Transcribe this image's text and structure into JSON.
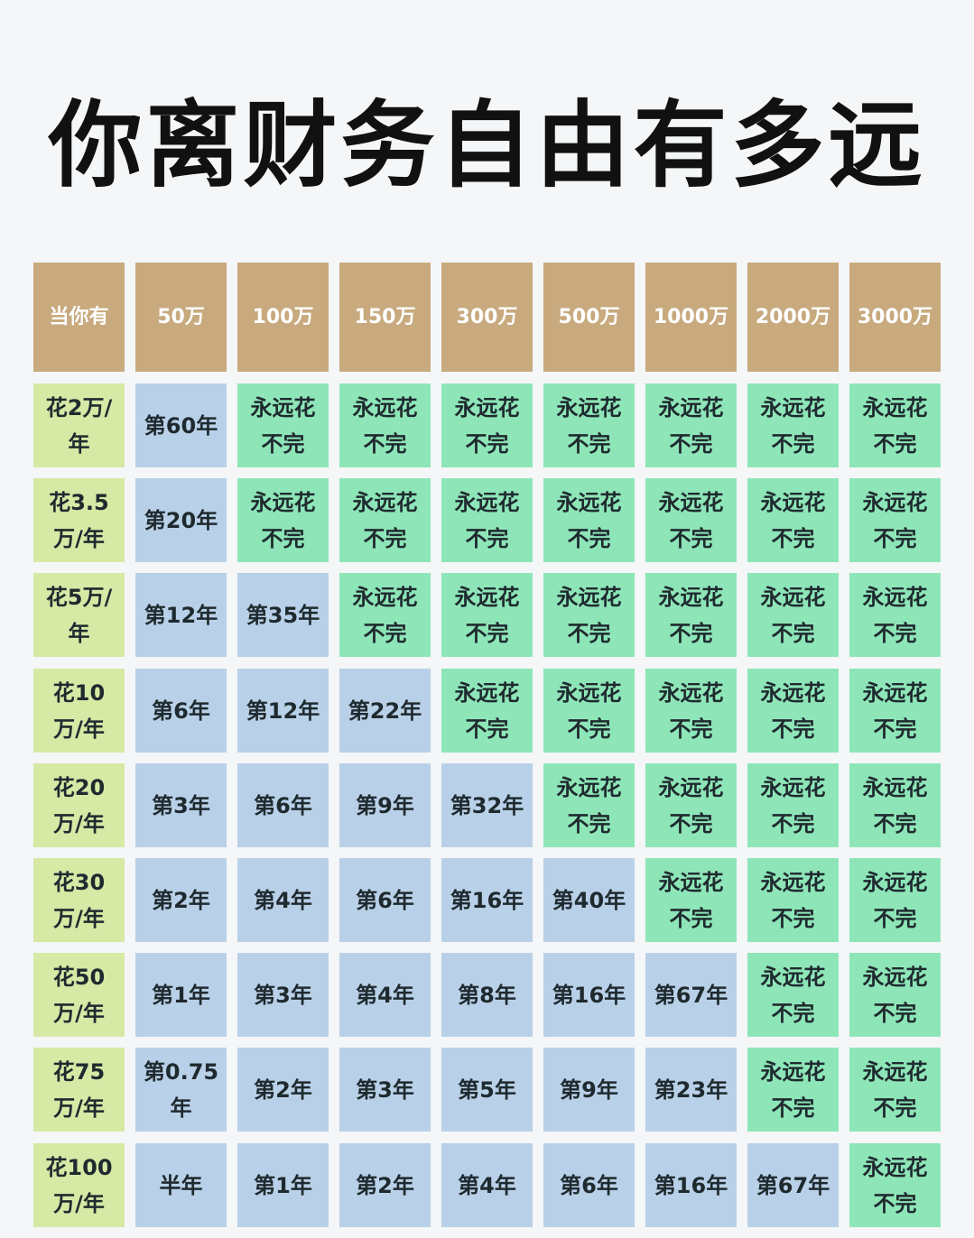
{
  "title": "你离财务自由有多远",
  "headers": [
    "当你有",
    "50万",
    "100万",
    "150万",
    "300万",
    "500万",
    "1000万",
    "2000万",
    "3000万"
  ],
  "rows": [
    {
      "label": "花2万/\n年",
      "cells": [
        "第60年",
        "永远花\n不完",
        "永远花\n不完",
        "永远花\n不完",
        "永远花\n不完",
        "永远花\n不完",
        "永远花\n不完",
        "永远花\n不完"
      ]
    },
    {
      "label": "花3.5\n万/年",
      "cells": [
        "第20年",
        "永远花\n不完",
        "永远花\n不完",
        "永远花\n不完",
        "永远花\n不完",
        "永远花\n不完",
        "永远花\n不完",
        "永远花\n不完"
      ]
    },
    {
      "label": "花5万/\n年",
      "cells": [
        "第12年",
        "第35年",
        "永远花\n不完",
        "永远花\n不完",
        "永远花\n不完",
        "永远花\n不完",
        "永远花\n不完",
        "永远花\n不完"
      ]
    },
    {
      "label": "花10\n万/年",
      "cells": [
        "第6年",
        "第12年",
        "第22年",
        "永远花\n不完",
        "永远花\n不完",
        "永远花\n不完",
        "永远花\n不完",
        "永远花\n不完"
      ]
    },
    {
      "label": "花20\n万/年",
      "cells": [
        "第3年",
        "第6年",
        "第9年",
        "第32年",
        "永远花\n不完",
        "永远花\n不完",
        "永远花\n不完",
        "永远花\n不完"
      ]
    },
    {
      "label": "花30\n万/年",
      "cells": [
        "第2年",
        "第4年",
        "第6年",
        "第16年",
        "第40年",
        "永远花\n不完",
        "永远花\n不完",
        "永远花\n不完"
      ]
    },
    {
      "label": "花50\n万/年",
      "cells": [
        "第1年",
        "第3年",
        "第4年",
        "第8年",
        "第16年",
        "第67年",
        "永远花\n不完",
        "永远花\n不完"
      ]
    },
    {
      "label": "花75\n万/年",
      "cells": [
        "第0.75\n年",
        "第2年",
        "第3年",
        "第5年",
        "第9年",
        "第23年",
        "永远花\n不完",
        "永远花\n不完"
      ]
    },
    {
      "label": "花100\n万/年",
      "cells": [
        "半年",
        "第1年",
        "第2年",
        "第4年",
        "第6年",
        "第16年",
        "第67年",
        "永远花\n不完"
      ]
    }
  ],
  "colors": {
    "header": "#c8aa7e",
    "row_label": "#d6e9a5",
    "years": "#b9d1e8",
    "forever": "#8ee6b8"
  }
}
